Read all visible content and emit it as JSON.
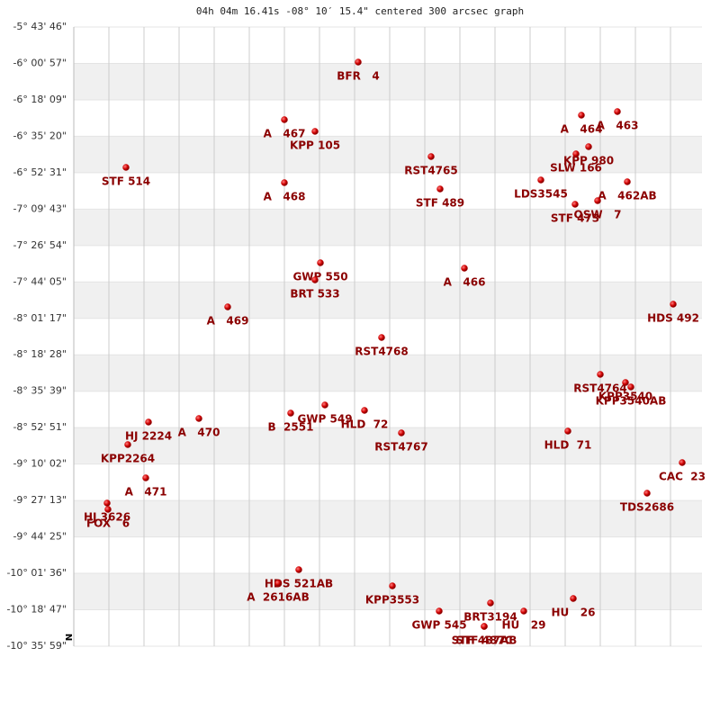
{
  "chart_data": {
    "type": "scatter",
    "title": "04h 04m 16.41s -08° 10′ 15.4\" centered 300 arcsec graph",
    "north_label": "N",
    "color": "#cc0000",
    "label_color": "#8b0000",
    "xlim": [
      0,
      698
    ],
    "xticks": [
      39,
      78,
      117,
      156,
      195,
      234,
      273,
      312,
      351,
      390,
      429,
      468,
      507,
      546,
      585,
      624,
      663
    ],
    "ylim": [
      -10.5997,
      -5.7294
    ],
    "yticks": [
      {
        "value": -5.7294,
        "label": "-5° 43' 46\""
      },
      {
        "value": -6.0158,
        "label": "-6° 00' 57\""
      },
      {
        "value": -6.3025,
        "label": "-6° 18' 09\""
      },
      {
        "value": -6.5889,
        "label": "-6° 35' 20\""
      },
      {
        "value": -6.8753,
        "label": "-6° 52' 31\""
      },
      {
        "value": -7.1619,
        "label": "-7° 09' 43\""
      },
      {
        "value": -7.4483,
        "label": "-7° 26' 54\""
      },
      {
        "value": -7.7347,
        "label": "-7° 44' 05\""
      },
      {
        "value": -8.0214,
        "label": "-8° 01' 17\""
      },
      {
        "value": -8.3078,
        "label": "-8° 18' 28\""
      },
      {
        "value": -8.5942,
        "label": "-8° 35' 39\""
      },
      {
        "value": -8.8808,
        "label": "-8° 52' 51\""
      },
      {
        "value": -9.1672,
        "label": "-9° 10' 02\""
      },
      {
        "value": -9.4536,
        "label": "-9° 27' 13\""
      },
      {
        "value": -9.7403,
        "label": "-9° 44' 25\""
      },
      {
        "value": -10.0267,
        "label": "-10° 01' 36\""
      },
      {
        "value": -10.3131,
        "label": "-10° 18' 47\""
      },
      {
        "value": -10.5997,
        "label": "-10° 35' 59\""
      }
    ],
    "points": [
      {
        "name": "BFR   4",
        "x": 316,
        "y": -6.0055
      },
      {
        "name": "A   467",
        "x": 234,
        "y": -6.4585
      },
      {
        "name": "KPP 105",
        "x": 268,
        "y": -6.5505
      },
      {
        "name": "A   463",
        "x": 604,
        "y": -6.3948
      },
      {
        "name": "A   464",
        "x": 564,
        "y": -6.4231
      },
      {
        "name": "KPP 980",
        "x": 572,
        "y": -6.6709
      },
      {
        "name": "SLW 166",
        "x": 558,
        "y": -6.7275
      },
      {
        "name": "STF 514",
        "x": 58,
        "y": -6.8337
      },
      {
        "name": "RST4765",
        "x": 397,
        "y": -6.7487
      },
      {
        "name": "LDS3545",
        "x": 519,
        "y": -6.9328
      },
      {
        "name": "A   462AB",
        "x": 615,
        "y": -6.9469
      },
      {
        "name": "A   468",
        "x": 234,
        "y": -6.954
      },
      {
        "name": "STF 489",
        "x": 407,
        "y": -7.0036
      },
      {
        "name": "OSW   7",
        "x": 582,
        "y": -7.0956
      },
      {
        "name": "STF 473",
        "x": 557,
        "y": -7.1239
      },
      {
        "name": "GWP 550",
        "x": 274,
        "y": -7.5841
      },
      {
        "name": "BRT 533",
        "x": 268,
        "y": -7.7186
      },
      {
        "name": "A   466",
        "x": 434,
        "y": -7.6266
      },
      {
        "name": "HDS 492",
        "x": 666,
        "y": -7.9097
      },
      {
        "name": "A   469",
        "x": 171,
        "y": -7.931
      },
      {
        "name": "RST4768",
        "x": 342,
        "y": -8.1717
      },
      {
        "name": "RST4764",
        "x": 585,
        "y": -8.4619
      },
      {
        "name": "KPP3540",
        "x": 613,
        "y": -8.5256
      },
      {
        "name": "KPP3540AB",
        "x": 619,
        "y": -8.561
      },
      {
        "name": "GWP 549",
        "x": 279,
        "y": -8.7026
      },
      {
        "name": "HLD  72",
        "x": 323,
        "y": -8.7451
      },
      {
        "name": "B  2551",
        "x": 241,
        "y": -8.7664
      },
      {
        "name": "HJ 2224",
        "x": 83,
        "y": -8.8371
      },
      {
        "name": "A   470",
        "x": 139,
        "y": -8.8088
      },
      {
        "name": "RST4767",
        "x": 364,
        "y": -8.9221
      },
      {
        "name": "HLD  71",
        "x": 549,
        "y": -8.9079
      },
      {
        "name": "KPP2264",
        "x": 60,
        "y": -9.014
      },
      {
        "name": "CAC  23",
        "x": 676,
        "y": -9.1556
      },
      {
        "name": "A   471",
        "x": 80,
        "y": -9.2759
      },
      {
        "name": "TDS2686",
        "x": 637,
        "y": -9.3963
      },
      {
        "name": "HJ 3626",
        "x": 37,
        "y": -9.4741
      },
      {
        "name": "FOX   6",
        "x": 38,
        "y": -9.5237
      },
      {
        "name": "HDS 521AB",
        "x": 250,
        "y": -9.998
      },
      {
        "name": "A  2616AB",
        "x": 227,
        "y": -10.1042
      },
      {
        "name": "KPP3553",
        "x": 354,
        "y": -10.1254
      },
      {
        "name": "HU   26",
        "x": 555,
        "y": -10.2245
      },
      {
        "name": "BRT3194",
        "x": 463,
        "y": -10.2599
      },
      {
        "name": "HU   29",
        "x": 500,
        "y": -10.3236
      },
      {
        "name": "GWP 545",
        "x": 406,
        "y": -10.3236
      },
      {
        "name": "STF 487AB",
        "x": 456,
        "y": -10.444
      },
      {
        "name": "STF 487C",
        "x": 456,
        "y": -10.444
      }
    ]
  }
}
